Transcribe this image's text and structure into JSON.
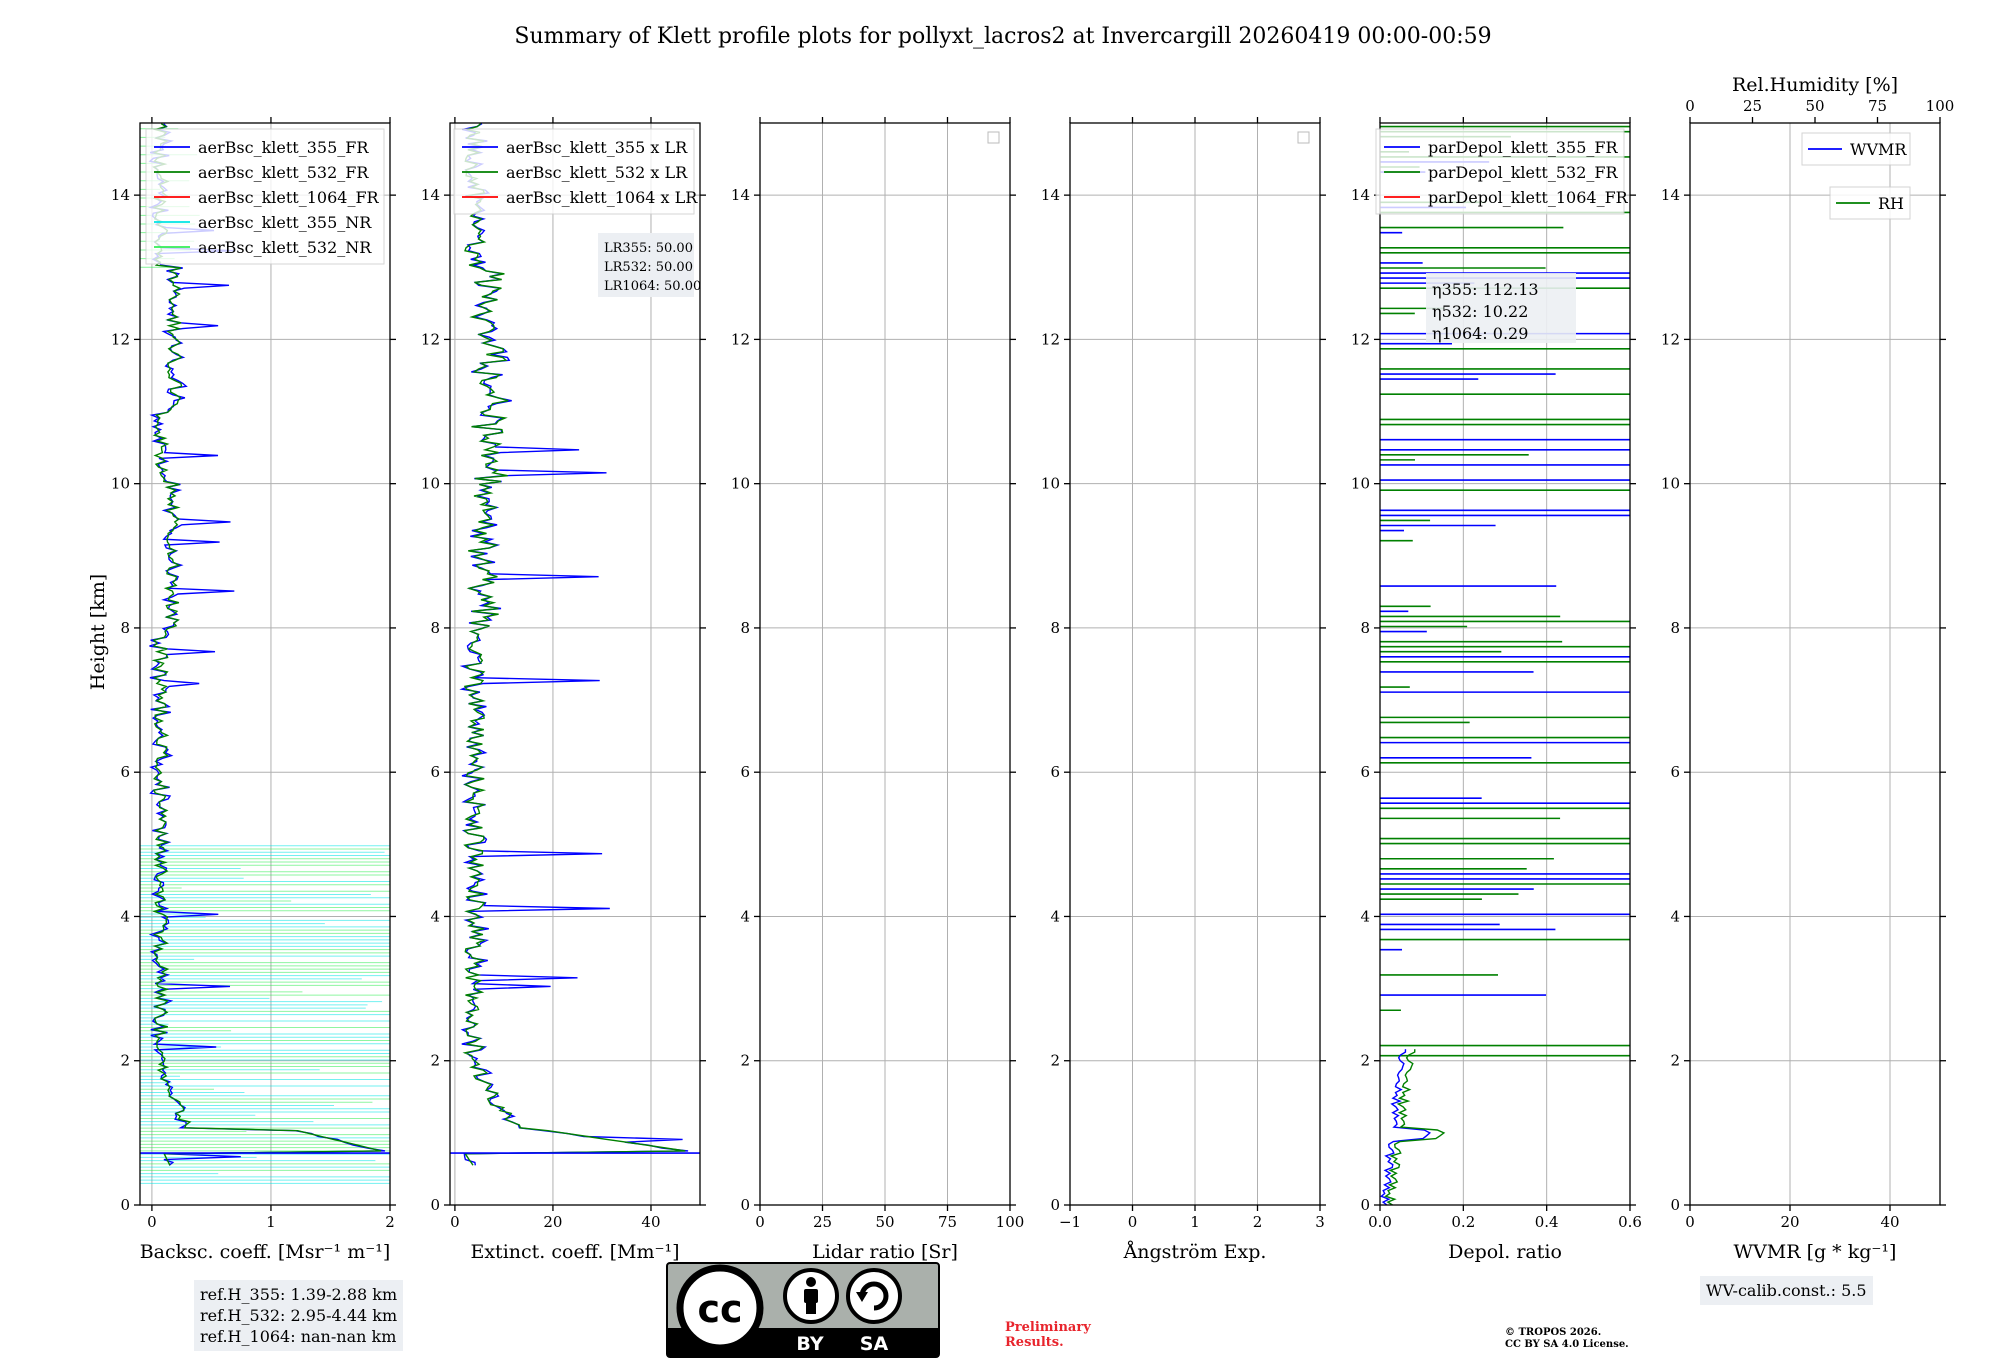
{
  "title": "Summary of Klett profile plots for pollyxt_lacros2 at Invercargill 20260419 00:00-00:59",
  "y_axis_label": "Height [km]",
  "y_ticks": [
    0,
    2,
    4,
    6,
    8,
    10,
    12,
    14
  ],
  "colors": {
    "blue": "#0000ff",
    "green": "#008000",
    "red": "#ff0000",
    "cyan": "#00e5e5",
    "lightgreen": "#33ee55",
    "grid": "#b0b0b0"
  },
  "chart_data": [
    {
      "type": "line",
      "name": "backscatter",
      "xlabel": "Backsc. coeff. [Msr⁻¹ m⁻¹]",
      "ylabel": "Height [km]",
      "xlim": [
        -0.1,
        2
      ],
      "ylim": [
        0,
        15
      ],
      "x_ticks": [
        0,
        1,
        2
      ],
      "x_tick_labels": [
        "0",
        "1",
        "2"
      ],
      "legend": [
        "aerBsc_klett_355_FR",
        "aerBsc_klett_532_FR",
        "aerBsc_klett_1064_FR",
        "aerBsc_klett_355_NR",
        "aerBsc_klett_532_NR"
      ],
      "legend_position": "top-right",
      "annotations": []
    },
    {
      "type": "line",
      "name": "extinction",
      "xlabel": "Extinct. coeff. [Mm⁻¹]",
      "ylabel": "",
      "xlim": [
        -1,
        50
      ],
      "ylim": [
        0,
        15
      ],
      "x_ticks": [
        0,
        20,
        40
      ],
      "x_tick_labels": [
        "0",
        "20",
        "40"
      ],
      "legend": [
        "aerBsc_klett_355 x LR",
        "aerBsc_klett_532 x LR",
        "aerBsc_klett_1064 x LR"
      ],
      "legend_position": "top-right",
      "annotations": [
        "LR355: 50.00",
        "LR532: 50.00",
        "LR1064: 50.00"
      ]
    },
    {
      "type": "line",
      "name": "lidar-ratio",
      "xlabel": "Lidar ratio [Sr]",
      "ylabel": "",
      "xlim": [
        0,
        100
      ],
      "ylim": [
        0,
        15
      ],
      "x_ticks": [
        0,
        25,
        50,
        75,
        100
      ],
      "x_tick_labels": [
        "0",
        "25",
        "50",
        "75",
        "100"
      ],
      "legend": [],
      "legend_position": "top-right",
      "annotations": []
    },
    {
      "type": "line",
      "name": "angstrom",
      "xlabel": "Ångström Exp.",
      "ylabel": "",
      "xlim": [
        -1,
        3
      ],
      "ylim": [
        0,
        15
      ],
      "x_ticks": [
        -1,
        0,
        1,
        2,
        3
      ],
      "x_tick_labels": [
        "−1",
        "0",
        "1",
        "2",
        "3"
      ],
      "legend": [],
      "legend_position": "top-right",
      "annotations": []
    },
    {
      "type": "line",
      "name": "depolarization",
      "xlabel": "Depol. ratio",
      "ylabel": "",
      "xlim": [
        0,
        0.6
      ],
      "ylim": [
        0,
        15
      ],
      "x_ticks": [
        0,
        0.2,
        0.4,
        0.6
      ],
      "x_tick_labels": [
        "0.0",
        "0.2",
        "0.4",
        "0.6"
      ],
      "legend": [
        "parDepol_klett_355_FR",
        "parDepol_klett_532_FR",
        "parDepol_klett_1064_FR"
      ],
      "legend_position": "top-right",
      "annotations": [
        "η355: 112.13",
        "η532: 10.22",
        "η1064: 0.29"
      ]
    },
    {
      "type": "line",
      "name": "water-vapor",
      "xlabel": "WVMR [g * kg⁻¹]",
      "ylabel": "",
      "xlim": [
        0,
        50
      ],
      "ylim": [
        0,
        15
      ],
      "x_ticks": [
        0,
        20,
        40
      ],
      "x_tick_labels": [
        "0",
        "20",
        "40"
      ],
      "top_axis_label": "Rel.Humidity [%]",
      "top_ticks": [
        "0",
        "25",
        "50",
        "75",
        "100"
      ],
      "legend": [
        "WVMR",
        "RH"
      ],
      "legend_position": "top-right",
      "annotations": []
    }
  ],
  "info_boxes": {
    "ref_heights": [
      "ref.H_355: 1.39-2.88 km",
      "ref.H_532: 2.95-4.44 km",
      "ref.H_1064: nan-nan km"
    ],
    "wv_calib": "WV-calib.const.: 5.5"
  },
  "license": {
    "left": "BY",
    "right": "SA"
  },
  "preliminary": [
    "Preliminary",
    "Results."
  ],
  "copyright": [
    "© TROPOS 2026.",
    "CC BY SA 4.0 License."
  ]
}
